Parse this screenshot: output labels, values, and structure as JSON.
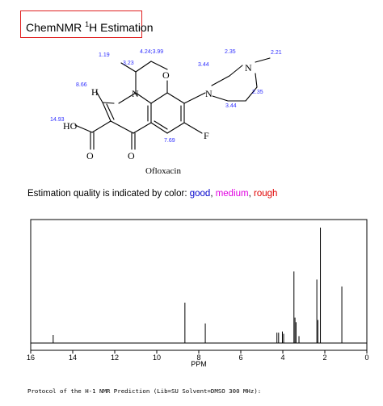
{
  "title": {
    "prefix": "ChemNMR ",
    "sup": "1",
    "rest": "H Estimation"
  },
  "molecule": {
    "name": "Ofloxacin",
    "atoms": {
      "O": "O",
      "N": "N",
      "H": "H",
      "F": "F",
      "HO": "HO"
    },
    "shift_labels": {
      "ch3": "1.19",
      "ch": "3.23",
      "och2": "4.24;3.99",
      "pip_top": "2.35",
      "nme": "2.21",
      "pip_left": "3.44",
      "pip_bot_r": "2.35",
      "pip_bot": "3.44",
      "vinyl_h": "8.66",
      "cooh": "14.93",
      "arom_h": "7.69"
    }
  },
  "quality": {
    "prefix": "Estimation quality is indicated by color: ",
    "good": "good",
    "sep1": ", ",
    "medium": "medium",
    "sep2": ", ",
    "rough": "rough",
    "colors": {
      "good": "#0000cc",
      "medium": "#e000e0",
      "rough": "#e00000"
    }
  },
  "chart_data": {
    "type": "line",
    "xlabel": "PPM",
    "xlim": [
      16,
      0
    ],
    "x_reversed": true,
    "ticks": [
      16,
      14,
      12,
      10,
      8,
      6,
      4,
      2,
      0
    ],
    "peaks": [
      {
        "ppm": 14.93,
        "rel": 0.07
      },
      {
        "ppm": 8.66,
        "rel": 0.35
      },
      {
        "ppm": 7.69,
        "rel": 0.17
      },
      {
        "ppm": 4.28,
        "rel": 0.09
      },
      {
        "ppm": 4.2,
        "rel": 0.09
      },
      {
        "ppm": 4.02,
        "rel": 0.1
      },
      {
        "ppm": 3.96,
        "rel": 0.08
      },
      {
        "ppm": 3.47,
        "rel": 0.62
      },
      {
        "ppm": 3.42,
        "rel": 0.22
      },
      {
        "ppm": 3.37,
        "rel": 0.18
      },
      {
        "ppm": 3.23,
        "rel": 0.06
      },
      {
        "ppm": 2.38,
        "rel": 0.55
      },
      {
        "ppm": 2.33,
        "rel": 0.2
      },
      {
        "ppm": 2.21,
        "rel": 1.0
      },
      {
        "ppm": 1.19,
        "rel": 0.49
      }
    ]
  },
  "protocol": "Protocol of the H-1 NMR Prediction (Lib=SU Solvent=DMSO 300 MHz):"
}
